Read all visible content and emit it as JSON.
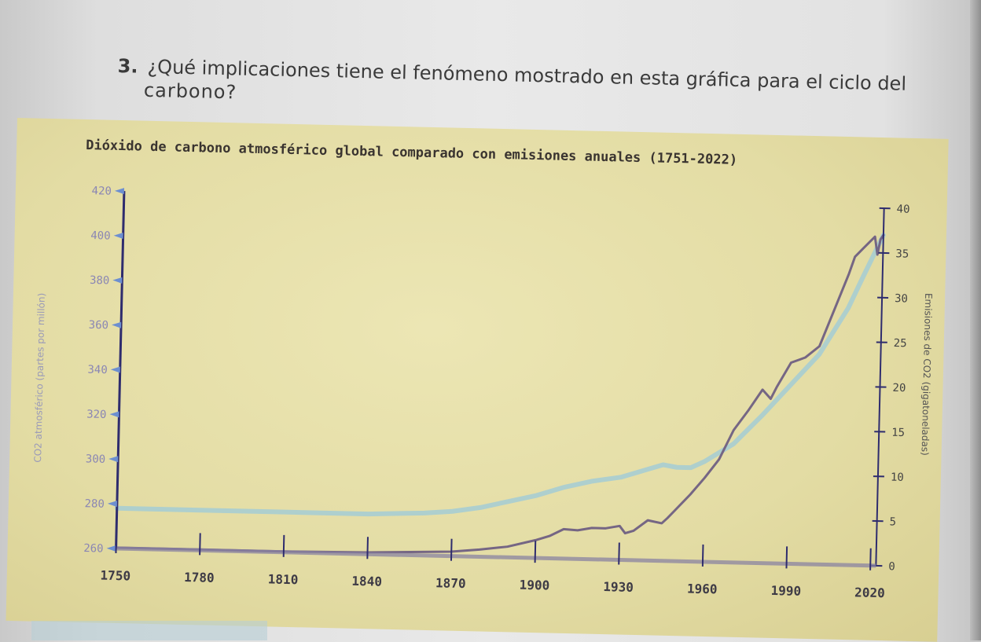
{
  "question": {
    "number": "3.",
    "text_line1": "¿Qué implicaciones tiene el fenómeno mostrado en esta gráfica para el ciclo del",
    "text_line2": "carbono?"
  },
  "chart_data": {
    "type": "line",
    "title": "Dióxido de carbono atmosférico global comparado con emisiones anuales (1751-2022)",
    "ylabel_left": "CO2 atmosférico (partes por millón)",
    "ylabel_right": "Emisiones de CO2 (gigatoneladas)",
    "x_ticks": [
      1750,
      1780,
      1810,
      1840,
      1870,
      1900,
      1930,
      1960,
      1990,
      2020
    ],
    "xlim": [
      1750,
      2022
    ],
    "ylim_left": [
      260,
      420
    ],
    "ylim_right": [
      0,
      40
    ],
    "y_ticks_left": [
      260,
      280,
      300,
      320,
      340,
      360,
      380,
      400,
      420
    ],
    "y_ticks_right": [
      0,
      5,
      10,
      15,
      20,
      25,
      30,
      35,
      40
    ],
    "colors": {
      "co2": "#a7cdd2",
      "emissions": "#6f5f82",
      "axis": "#2e2c6e"
    },
    "series": [
      {
        "axis": "left",
        "x": [
          1750,
          1780,
          1810,
          1840,
          1860,
          1870,
          1880,
          1890,
          1900,
          1910,
          1920,
          1930,
          1940,
          1945,
          1950,
          1955,
          1960,
          1970,
          1980,
          1990,
          2000,
          2010,
          2015,
          2022
        ],
        "values": [
          278,
          278,
          278,
          278,
          279,
          280,
          282,
          285,
          288,
          292,
          295,
          297,
          301,
          303,
          302,
          302,
          305,
          313,
          326,
          340,
          354,
          375,
          389,
          408
        ]
      },
      {
        "axis": "right",
        "x": [
          1750,
          1780,
          1810,
          1840,
          1870,
          1880,
          1890,
          1900,
          1905,
          1910,
          1915,
          1920,
          1925,
          1930,
          1932,
          1935,
          1940,
          1945,
          1947,
          1950,
          1955,
          1960,
          1965,
          1970,
          1975,
          1980,
          1983,
          1985,
          1990,
          1995,
          2000,
          2005,
          2010,
          2012,
          2015,
          2019,
          2020,
          2021,
          2022
        ],
        "values": [
          0.1,
          0.1,
          0.1,
          0.2,
          0.5,
          0.8,
          1.2,
          2,
          2.5,
          3.3,
          3.2,
          3.5,
          3.5,
          3.8,
          3.0,
          3.3,
          4.5,
          4.2,
          4.8,
          5.8,
          7.5,
          9.4,
          11.5,
          14.8,
          17,
          19.4,
          18.4,
          19.7,
          22.5,
          23.1,
          24.4,
          28.5,
          32.6,
          34.5,
          35.5,
          36.8,
          34.8,
          36.5,
          37
        ]
      }
    ]
  }
}
